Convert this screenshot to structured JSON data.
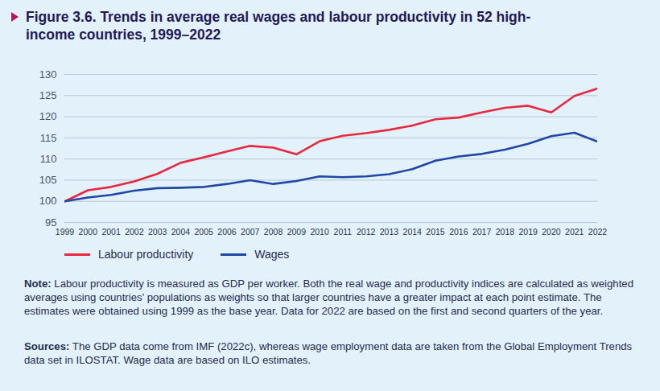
{
  "chart_data": {
    "type": "line",
    "title": "Figure 3.6.  Trends in average real wages and labour productivity in 52 high-income countries, 1999–2022",
    "x": [
      1999,
      2000,
      2001,
      2002,
      2003,
      2004,
      2005,
      2006,
      2007,
      2008,
      2009,
      2010,
      2011,
      2012,
      2013,
      2014,
      2015,
      2016,
      2017,
      2018,
      2019,
      2020,
      2021,
      2022
    ],
    "series": [
      {
        "name": "Labour productivity",
        "color": "#e8283f",
        "values": [
          100,
          102.6,
          103.4,
          104.7,
          106.5,
          109.1,
          110.4,
          111.8,
          113.1,
          112.7,
          111.1,
          114.2,
          115.5,
          116.1,
          116.9,
          117.9,
          119.4,
          119.8,
          121.0,
          122.1,
          122.6,
          121.0,
          124.9,
          126.7
        ]
      },
      {
        "name": "Wages",
        "color": "#1f47a6",
        "values": [
          100,
          100.9,
          101.5,
          102.5,
          103.1,
          103.2,
          103.4,
          104.1,
          105.0,
          104.1,
          104.8,
          105.9,
          105.7,
          105.9,
          106.4,
          107.6,
          109.6,
          110.6,
          111.2,
          112.2,
          113.6,
          115.4,
          116.2,
          114.1
        ]
      }
    ],
    "xlim": [
      1999,
      2022
    ],
    "xticks": [
      1999,
      2000,
      2001,
      2002,
      2003,
      2004,
      2005,
      2006,
      2007,
      2008,
      2009,
      2010,
      2011,
      2012,
      2013,
      2014,
      2015,
      2016,
      2017,
      2018,
      2019,
      2020,
      2021,
      2022
    ],
    "ylim": [
      95,
      130
    ],
    "yticks": [
      95,
      100,
      105,
      110,
      115,
      120,
      125,
      130
    ],
    "grid": true,
    "legend": "bottom-left",
    "note": {
      "label": "Note:",
      "text": "Labour productivity is measured as GDP per worker. Both the real wage and productivity indices are calculated as weighted averages using countries’ populations as weights so that larger countries have a greater impact at each point estimate. The estimates were obtained using 1999 as the base year. Data for 2022 are based on the first and second quarters of the year."
    },
    "sources": {
      "label": "Sources:",
      "text": "The GDP data come from IMF (2022c), whereas wage employment data are taken from the Global Employment Trends data set in ILOSTAT. Wage data are based on ILO estimates."
    }
  }
}
